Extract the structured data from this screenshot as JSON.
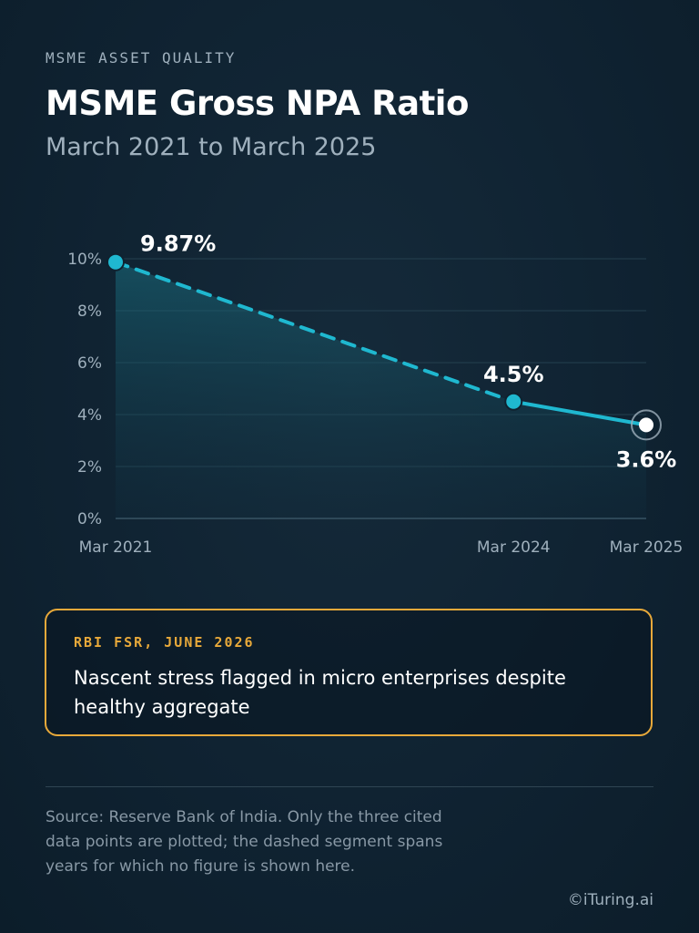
{
  "header": {
    "eyebrow": "MSME ASSET QUALITY",
    "title": "MSME Gross NPA Ratio",
    "subtitle": "March 2021 to March 2025"
  },
  "colors": {
    "line": "#1fb8d0",
    "accent": "#e8a93a",
    "last_point": "#ffffff"
  },
  "chart_data": {
    "type": "line",
    "x": [
      "Mar 2021",
      "Mar 2024",
      "Mar 2025"
    ],
    "x_years": [
      2021,
      2024,
      2025
    ],
    "y": [
      9.87,
      4.5,
      3.6
    ],
    "data_labels": [
      "9.87%",
      "4.5%",
      "3.6%"
    ],
    "y_ticks": [
      "0%",
      "2%",
      "4%",
      "6%",
      "8%",
      "10%"
    ],
    "ylim": [
      0,
      10
    ],
    "xlim": [
      2021,
      2025
    ],
    "grid": true,
    "dashed_segments": [
      [
        0,
        1
      ]
    ],
    "highlighted_point": 2,
    "area_fill": true
  },
  "callout": {
    "label": "RBI FSR, JUNE 2026",
    "text": "Nascent stress flagged in micro enterprises despite healthy aggregate"
  },
  "footer": {
    "source": "Source: Reserve Bank of India. Only the three cited data points are plotted; the dashed segment spans years for which no figure is shown here.",
    "credit": "©iTuring.ai"
  }
}
